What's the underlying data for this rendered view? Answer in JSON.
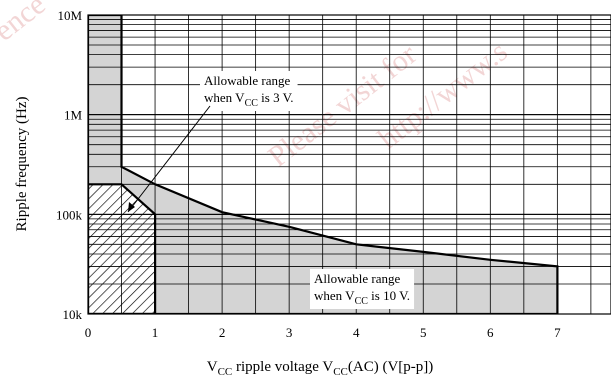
{
  "chart_data": {
    "type": "area",
    "y_scale": "log",
    "xlim": [
      0,
      7.8
    ],
    "ylim": [
      10000,
      10000000
    ],
    "x_ticks": [
      0,
      1,
      2,
      3,
      4,
      5,
      6,
      7
    ],
    "x_tick_labels": [
      "0",
      "1",
      "2",
      "3",
      "4",
      "5",
      "6",
      "7"
    ],
    "y_ticks": [
      10000,
      100000,
      1000000,
      10000000
    ],
    "y_tick_labels": [
      "10k",
      "100k",
      "1M",
      "10M"
    ],
    "grid": true,
    "ylabel": "Ripple frequency  (Hz)",
    "xlabel": {
      "prefix": "V",
      "prefix_sub": "CC",
      "mid": " ripple voltage  V",
      "mid_sub": "CC",
      "suffix": "(AC)  (V[p-p])"
    },
    "series": [
      {
        "fill": "gray",
        "points": [
          [
            0,
            10000
          ],
          [
            0,
            10000000
          ],
          [
            0.5,
            10000000
          ],
          [
            0.5,
            300000
          ],
          [
            1,
            200000
          ],
          [
            2,
            105000
          ],
          [
            3,
            75000
          ],
          [
            4,
            50000
          ],
          [
            5,
            42000
          ],
          [
            6,
            35000
          ],
          [
            7,
            30000
          ],
          [
            7,
            10000
          ]
        ],
        "annotation": {
          "line1": "Allowable range",
          "line2_prefix": "when V",
          "line2_sub": "CC",
          "line2_suffix": " is 10 V."
        }
      },
      {
        "fill": "hatched",
        "points": [
          [
            0,
            10000
          ],
          [
            0,
            200000
          ],
          [
            0.5,
            200000
          ],
          [
            1,
            100000
          ],
          [
            1,
            10000
          ]
        ],
        "annotation": {
          "line1": "Allowable range",
          "line2_prefix": "when V",
          "line2_sub": "CC",
          "line2_suffix": " is 3 V."
        }
      }
    ]
  },
  "watermark": {
    "text1": "Please visit for",
    "text2": "http://www.s",
    "text3": "ence"
  },
  "colors": {
    "fill_gray": "#d4d4d4",
    "line": "#000000",
    "grid": "#000000",
    "watermark": "#e8b4b4"
  }
}
